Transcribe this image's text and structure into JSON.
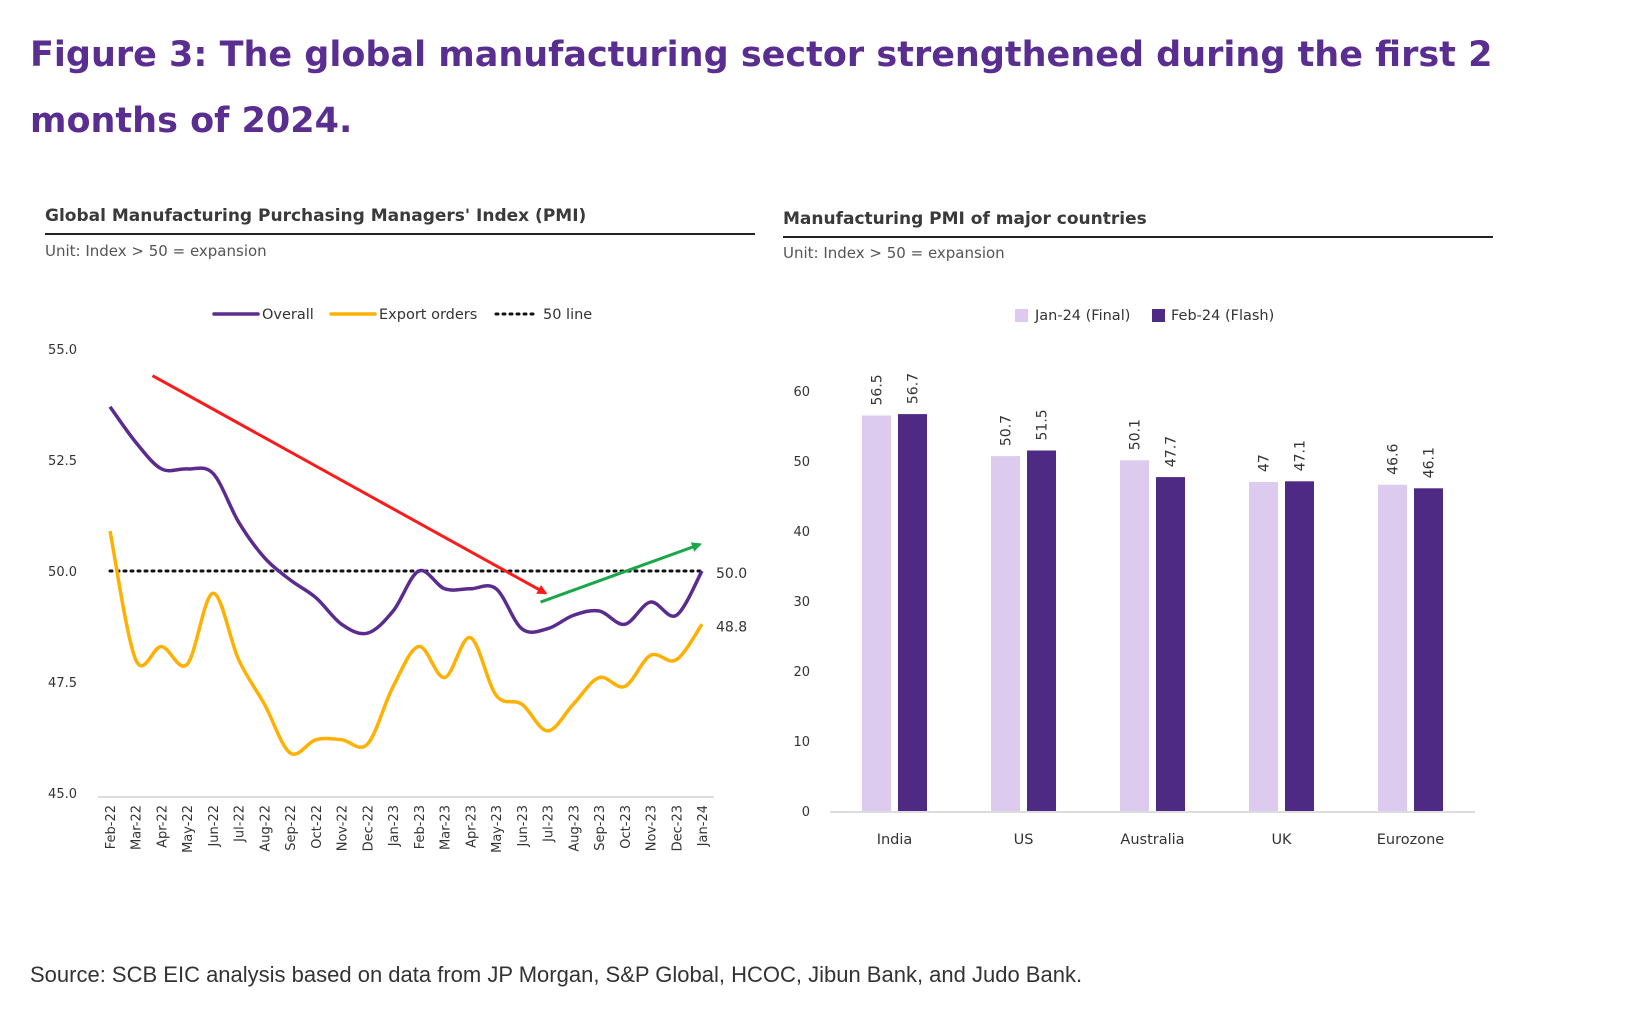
{
  "figure": {
    "title": "Figure 3: The global manufacturing sector strengthened during the first 2 months of 2024.",
    "source": "Source: SCB EIC analysis based on data from JP Morgan, S&P Global, HCOC, Jibun Bank, and Judo Bank."
  },
  "colors": {
    "title": "#5a2d91",
    "overall": "#5b2c8f",
    "export": "#ffb000",
    "fifty_line": "#111111",
    "down_arrow": "#ff1a1a",
    "up_arrow": "#1aa64a",
    "jan_bar": "#dccbee",
    "feb_bar": "#4f2a84"
  },
  "chart_data": [
    {
      "type": "line",
      "title": "Global Manufacturing Purchasing Managers' Index (PMI)",
      "subtitle": "Unit: Index > 50 = expansion",
      "categories": [
        "Feb-22",
        "Mar-22",
        "Apr-22",
        "May-22",
        "Jun-22",
        "Jul-22",
        "Aug-22",
        "Sep-22",
        "Oct-22",
        "Nov-22",
        "Dec-22",
        "Jan-23",
        "Feb-23",
        "Mar-23",
        "Apr-23",
        "May-23",
        "Jun-23",
        "Jul-23",
        "Aug-23",
        "Sep-23",
        "Oct-23",
        "Nov-23",
        "Dec-23",
        "Jan-24"
      ],
      "series": [
        {
          "name": "Overall",
          "values": [
            53.7,
            52.9,
            52.3,
            52.3,
            52.2,
            51.1,
            50.3,
            49.8,
            49.4,
            48.8,
            48.6,
            49.1,
            50.0,
            49.6,
            49.6,
            49.6,
            48.7,
            48.7,
            49.0,
            49.1,
            48.8,
            49.3,
            49.0,
            50.0
          ]
        },
        {
          "name": "Export orders",
          "values": [
            50.9,
            48.0,
            48.3,
            47.9,
            49.5,
            48.0,
            47.0,
            45.9,
            46.2,
            46.2,
            46.1,
            47.4,
            48.3,
            47.6,
            48.5,
            47.2,
            47.0,
            46.4,
            47.0,
            47.6,
            47.4,
            48.1,
            48.0,
            48.8
          ]
        }
      ],
      "reference_line": {
        "name": "50 line",
        "value": 50.0
      },
      "annotations": [
        {
          "label": "50.0",
          "value": 50.0,
          "series": "Overall"
        },
        {
          "label": "48.8",
          "value": 48.8,
          "series": "Export orders"
        }
      ],
      "arrows": [
        {
          "direction": "down",
          "from": {
            "category": "Apr-22",
            "y": 54.4
          },
          "to": {
            "category": "Jul-23",
            "y": 49.5
          }
        },
        {
          "direction": "up",
          "from": {
            "category": "Jul-23",
            "y": 49.3
          },
          "to": {
            "category": "Jan-24",
            "y": 50.6
          }
        }
      ],
      "ylim": [
        45.0,
        55.0
      ],
      "yticks": [
        "45.0",
        "47.5",
        "50.0",
        "52.5",
        "55.0"
      ],
      "legend": [
        {
          "label": "Overall",
          "style": "solid",
          "color_key": "overall"
        },
        {
          "label": "Export orders",
          "style": "solid",
          "color_key": "export"
        },
        {
          "label": "50 line",
          "style": "dotted",
          "color_key": "fifty_line"
        }
      ],
      "legend_position": "top-center",
      "grid": false
    },
    {
      "type": "bar",
      "title": "Manufacturing PMI of major countries",
      "subtitle": "Unit: Index > 50 = expansion",
      "categories": [
        "India",
        "US",
        "Australia",
        "UK",
        "Eurozone"
      ],
      "series": [
        {
          "name": "Jan-24 (Final)",
          "values": [
            56.5,
            50.7,
            50.1,
            47,
            46.6
          ],
          "labels": [
            "56.5",
            "50.7",
            "50.1",
            "47",
            "46.6"
          ],
          "color_key": "jan_bar"
        },
        {
          "name": "Feb-24 (Flash)",
          "values": [
            56.7,
            51.5,
            47.7,
            47.1,
            46.1
          ],
          "labels": [
            "56.7",
            "51.5",
            "47.7",
            "47.1",
            "46.1"
          ],
          "color_key": "feb_bar"
        }
      ],
      "ylim": [
        0,
        60
      ],
      "yticks": [
        "0",
        "10",
        "20",
        "30",
        "40",
        "50",
        "60"
      ],
      "legend_position": "top-center",
      "grid": false
    }
  ]
}
